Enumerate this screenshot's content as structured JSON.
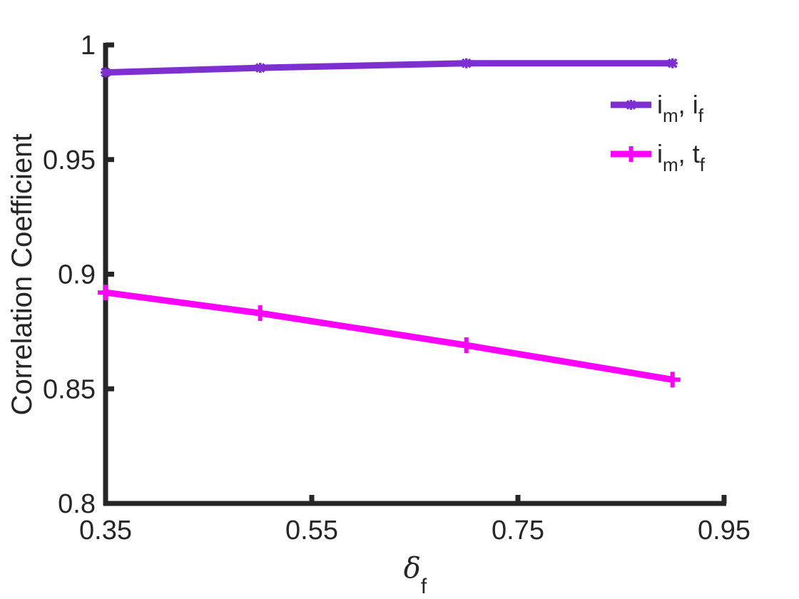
{
  "chart_data": {
    "type": "line",
    "x": [
      0.35,
      0.5,
      0.7,
      0.9
    ],
    "series": [
      {
        "name": "i_m, i_f",
        "name_main1": "i",
        "name_sub1": "m",
        "name_sep": ", ",
        "name_main2": "i",
        "name_sub2": "f",
        "color": "#7e2fd0",
        "marker": "star",
        "values": [
          0.988,
          0.99,
          0.992,
          0.992
        ]
      },
      {
        "name": "i_m, t_f",
        "name_main1": "i",
        "name_sub1": "m",
        "name_sep": ", ",
        "name_main2": "t",
        "name_sub2": "f",
        "color": "#ff00ff",
        "marker": "plus",
        "values": [
          0.892,
          0.883,
          0.869,
          0.854
        ]
      }
    ],
    "xlabel": "δ_f",
    "xlabel_main": "δ",
    "xlabel_sub": "f",
    "ylabel": "Correlation Coefficient",
    "xlim": [
      0.35,
      0.95
    ],
    "ylim": [
      0.8,
      1.0
    ],
    "xticks": [
      0.35,
      0.55,
      0.75,
      0.95
    ],
    "xtick_labels": [
      "0.35",
      "0.55",
      "0.75",
      "0.95"
    ],
    "yticks": [
      0.8,
      0.85,
      0.9,
      0.95,
      1.0
    ],
    "ytick_labels": [
      "0.8",
      "0.85",
      "0.9",
      "0.95",
      "1"
    ],
    "grid": false,
    "legend_position": "top-right",
    "axis_color": "#262626"
  }
}
